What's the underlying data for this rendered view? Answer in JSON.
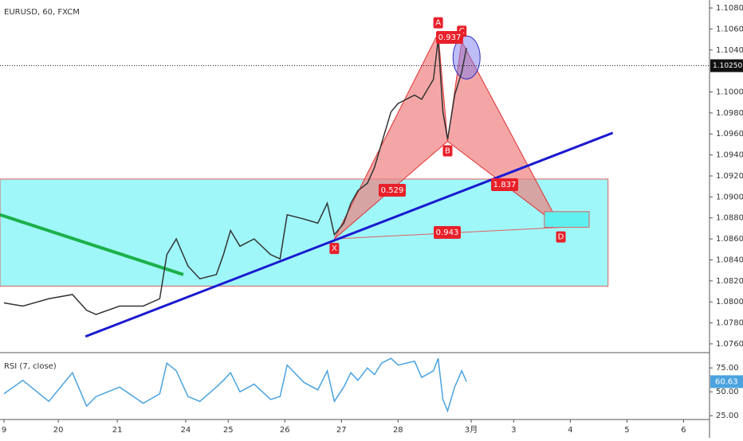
{
  "chart_data": [
    {
      "type": "line",
      "title": "EURUSD, 60, FXCM",
      "color": "#333333",
      "x": [
        0,
        8,
        19,
        29,
        35,
        39,
        49,
        59,
        66,
        69,
        73,
        78,
        83,
        90,
        93,
        96,
        100,
        106,
        113,
        117,
        120,
        127,
        133,
        137,
        140,
        144,
        147,
        150,
        154,
        157,
        160,
        164,
        167,
        174,
        177,
        182,
        184,
        186,
        188,
        191,
        194,
        196
      ],
      "values": [
        1.0799,
        1.0796,
        1.0803,
        1.0807,
        1.0792,
        1.0788,
        1.0796,
        1.0796,
        1.0803,
        1.0845,
        1.086,
        1.0834,
        1.0822,
        1.0826,
        1.0845,
        1.0868,
        1.0853,
        1.086,
        1.0845,
        1.0841,
        1.0883,
        1.0879,
        1.0875,
        1.0894,
        1.0864,
        1.0875,
        1.0894,
        1.0906,
        1.0913,
        1.0928,
        1.0951,
        1.0981,
        1.0989,
        1.0997,
        1.0993,
        1.1012,
        1.105,
        1.0981,
        1.0955,
        1.0997,
        1.1019,
        1.1042
      ],
      "xlim": [
        -1.7,
        299
      ],
      "ylim": [
        1.07539,
        1.10876
      ],
      "xticks": [
        {
          "value": 0,
          "label": "9"
        },
        {
          "value": 23,
          "label": "20"
        },
        {
          "value": 48,
          "label": "21"
        },
        {
          "value": 77,
          "label": "24"
        },
        {
          "value": 95,
          "label": "25"
        },
        {
          "value": 119,
          "label": "26"
        },
        {
          "value": 143,
          "label": "27"
        },
        {
          "value": 167,
          "label": "28"
        },
        {
          "value": 198,
          "label": "3月"
        },
        {
          "value": 216,
          "label": "3"
        },
        {
          "value": 240,
          "label": "4"
        },
        {
          "value": 264,
          "label": "5"
        },
        {
          "value": 288,
          "label": "6"
        }
      ],
      "yticks": [
        {
          "value": 1.108,
          "label": "1.10800"
        },
        {
          "value": 1.106,
          "label": "1.10600"
        },
        {
          "value": 1.104,
          "label": "1.10400"
        },
        {
          "value": 1.1,
          "label": "1.10000"
        },
        {
          "value": 1.098,
          "label": "1.09800"
        },
        {
          "value": 1.096,
          "label": "1.09600"
        },
        {
          "value": 1.094,
          "label": "1.09400"
        },
        {
          "value": 1.092,
          "label": "1.09200"
        },
        {
          "value": 1.09,
          "label": "1.09000"
        },
        {
          "value": 1.088,
          "label": "1.08800"
        },
        {
          "value": 1.086,
          "label": "1.08600"
        },
        {
          "value": 1.084,
          "label": "1.08400"
        },
        {
          "value": 1.082,
          "label": "1.08200"
        },
        {
          "value": 1.08,
          "label": "1.08000"
        },
        {
          "value": 1.078,
          "label": "1.07800"
        },
        {
          "value": 1.076,
          "label": "1.07600"
        }
      ],
      "current_price": {
        "value": 1.1025,
        "label": "1.10250"
      },
      "zone": {
        "x": [
          -1.7,
          256
        ],
        "y": [
          1.0815,
          1.0917
        ]
      },
      "trendline": {
        "x": [
          34.5,
          258
        ],
        "y": [
          1.0767,
          1.0961
        ]
      },
      "green_line": {
        "x": [
          -1.7,
          76
        ],
        "y": [
          1.0883,
          1.0826
        ]
      },
      "pattern": {
        "labels": [
          "X",
          "A",
          "B",
          "C",
          "D"
        ],
        "x": [
          140,
          184,
          188,
          194,
          236
        ],
        "y": [
          1.086,
          1.1056,
          1.0953,
          1.1048,
          1.0871
        ]
      },
      "ratios": [
        "0.529",
        "0.937",
        "1.837",
        "0.943"
      ],
      "target_box": {
        "x": [
          229,
          248
        ],
        "y": [
          1.0871,
          1.0886
        ]
      }
    },
    {
      "type": "line",
      "title": "RSI (7, close)",
      "color": "#4aa3df",
      "x": [
        0,
        8,
        19,
        29,
        35,
        39,
        49,
        59,
        66,
        69,
        73,
        78,
        83,
        90,
        93,
        96,
        100,
        106,
        113,
        117,
        120,
        127,
        133,
        137,
        140,
        144,
        147,
        150,
        154,
        157,
        160,
        164,
        167,
        174,
        177,
        182,
        184,
        186,
        188,
        191,
        194,
        196
      ],
      "values": [
        48,
        62,
        40,
        70,
        35,
        45,
        55,
        38,
        48,
        80,
        72,
        45,
        40,
        55,
        62,
        70,
        50,
        58,
        42,
        45,
        78,
        60,
        52,
        72,
        40,
        55,
        70,
        62,
        75,
        68,
        80,
        85,
        78,
        82,
        65,
        72,
        85,
        42,
        30,
        55,
        72,
        60.63
      ],
      "ylim": [
        21,
        91
      ],
      "yticks": [
        {
          "value": 75,
          "label": "75.00"
        },
        {
          "value": 50,
          "label": "50.00"
        },
        {
          "value": 25,
          "label": "25.00"
        }
      ]
    }
  ]
}
